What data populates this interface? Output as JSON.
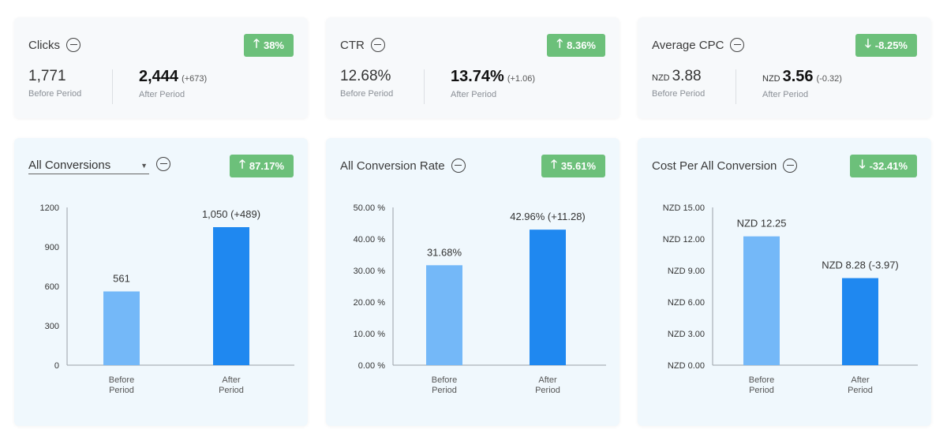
{
  "kpis": [
    {
      "title": "Clicks",
      "badge": "38%",
      "badge_dir": "up",
      "before_value": "1,771",
      "before_label": "Before Period",
      "after_value": "2,444",
      "after_delta": "(+673)",
      "after_label": "After Period",
      "currency": ""
    },
    {
      "title": "CTR",
      "badge": "8.36%",
      "badge_dir": "up",
      "before_value": "12.68%",
      "before_label": "Before Period",
      "after_value": "13.74%",
      "after_delta": "(+1.06)",
      "after_label": "After Period",
      "currency": ""
    },
    {
      "title": "Average CPC",
      "badge": "-8.25%",
      "badge_dir": "down",
      "before_value": "3.88",
      "before_label": "Before Period",
      "after_value": "3.56",
      "after_delta": "(-0.32)",
      "after_label": "After Period",
      "currency": "NZD"
    }
  ],
  "charts": [
    {
      "title": "All Conversions",
      "is_select": true,
      "badge": "87.17%",
      "badge_dir": "up"
    },
    {
      "title": "All Conversion Rate",
      "is_select": false,
      "badge": "35.61%",
      "badge_dir": "up"
    },
    {
      "title": "Cost Per All Conversion",
      "is_select": false,
      "badge": "-32.41%",
      "badge_dir": "down"
    }
  ],
  "colors": {
    "badge": "#6cc07a",
    "bar_before": "#74b8f8",
    "bar_after": "#1f88f0",
    "kpi_bg": "#f7f9fb",
    "chart_bg": "#f0f8fd"
  },
  "icons": {
    "collapse": "minus-circle-icon",
    "up": "arrow-up-icon",
    "down": "arrow-down-icon",
    "dropdown": "caret-down-icon"
  },
  "chart_data": [
    {
      "type": "bar",
      "categories": [
        "Before Period",
        "After Period"
      ],
      "values": [
        561,
        1050
      ],
      "labels": [
        "561",
        "1,050 (+489)"
      ],
      "yticks": [
        "0",
        "300",
        "600",
        "900",
        "1200"
      ],
      "ylim": [
        0,
        1200
      ],
      "title": "All Conversions"
    },
    {
      "type": "bar",
      "categories": [
        "Before Period",
        "After Period"
      ],
      "values": [
        31.68,
        42.96
      ],
      "labels": [
        "31.68%",
        "42.96% (+11.28)"
      ],
      "yticks": [
        "0.00 %",
        "10.00 %",
        "20.00 %",
        "30.00 %",
        "40.00 %",
        "50.00 %"
      ],
      "ylim": [
        0,
        50
      ],
      "title": "All Conversion Rate"
    },
    {
      "type": "bar",
      "categories": [
        "Before Period",
        "After Period"
      ],
      "values": [
        12.25,
        8.28
      ],
      "labels": [
        "NZD 12.25",
        "NZD 8.28 (-3.97)"
      ],
      "yticks": [
        "NZD 0.00",
        "NZD 3.00",
        "NZD 6.00",
        "NZD 9.00",
        "NZD 12.00",
        "NZD 15.00"
      ],
      "ylim": [
        0,
        15
      ],
      "title": "Cost Per All Conversion"
    }
  ]
}
